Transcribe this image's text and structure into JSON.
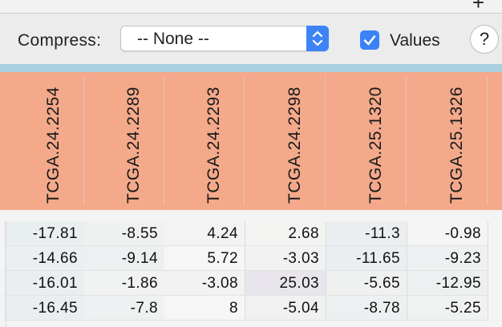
{
  "toolbar": {
    "plus_symbol": "+",
    "compress_label": "Compress:",
    "compress_value": "-- None --",
    "values_checkbox_checked": true,
    "values_label": "Values",
    "help_label": "?"
  },
  "colors": {
    "header_band": "#f3a98a",
    "divider_band": "#a9cfe0",
    "accent": "#3a82f6"
  },
  "columns": [
    "TCGA.24.2254",
    "TCGA.24.2289",
    "TCGA.24.2293",
    "TCGA.24.2298",
    "TCGA.25.1320",
    "TCGA.25.1326"
  ],
  "rows": [
    [
      "-17.81",
      "-8.55",
      "4.24",
      "2.68",
      "-11.3",
      "-0.98"
    ],
    [
      "-14.66",
      "-9.14",
      "5.72",
      "-3.03",
      "-11.65",
      "-9.23"
    ],
    [
      "-16.01",
      "-1.86",
      "-3.08",
      "25.03",
      "-5.65",
      "-12.95"
    ],
    [
      "-16.45",
      "-7.8",
      "8",
      "-5.04",
      "-8.78",
      "-5.25"
    ]
  ],
  "row_colors": [
    [
      "#e9eef1",
      "#eef1ef",
      "#f2f3f2",
      "#f3f3f2",
      "#eaeef1",
      "#f5f5f5"
    ],
    [
      "#ebeff1",
      "#edf0f1",
      "#f6f6f6",
      "#f2f2f2",
      "#ebeef1",
      "#eef1f2"
    ],
    [
      "#eaeef1",
      "#f1f2f2",
      "#f2f2f2",
      "#e9e5ec",
      "#eff1f1",
      "#ecf0f1"
    ],
    [
      "#eaeef1",
      "#eef1f1",
      "#f6f6f6",
      "#f1f1f1",
      "#edf0f1",
      "#f0f1f1"
    ]
  ]
}
